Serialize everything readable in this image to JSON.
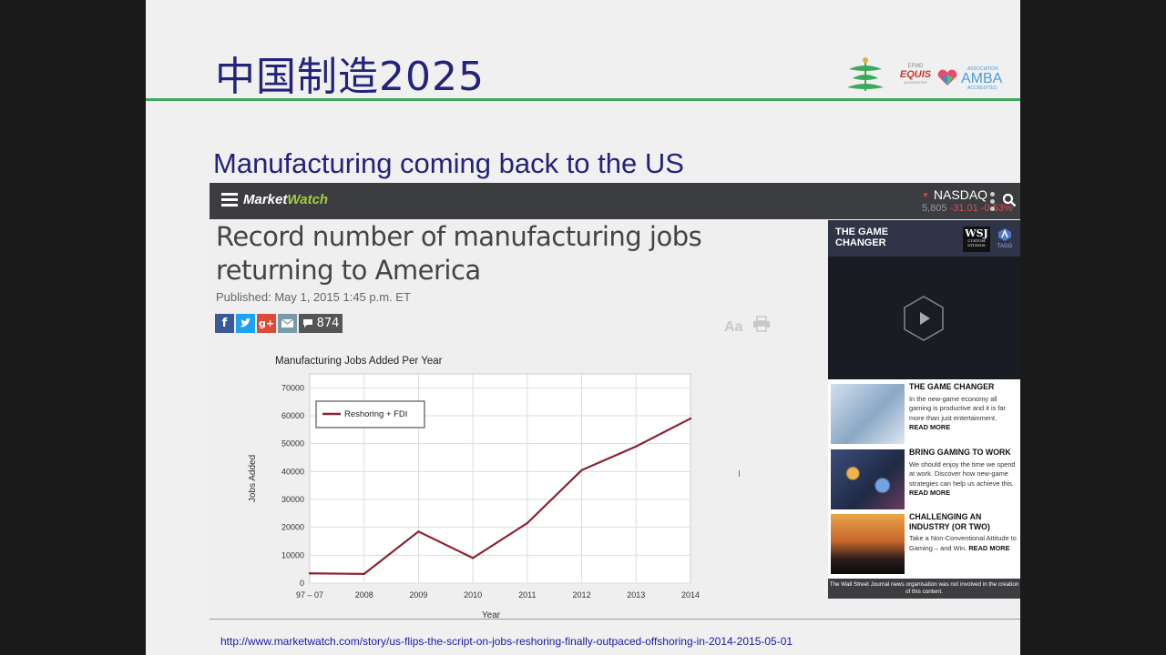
{
  "slide": {
    "title": "中国制造2025",
    "subtitle": "Manufacturing coming back to the US",
    "logos": {
      "equis_top": "EFMD",
      "equis": "EQUIS",
      "equis_sub": "ACCREDITED",
      "amba_top": "ASSOCIATION",
      "amba": "AMBA",
      "amba_sub": "ACCREDITED"
    },
    "source_url": "http://www.marketwatch.com/story/us-flips-the-script-on-jobs-reshoring-finally-outpaced-offshoring-in-2014-2015-05-01"
  },
  "marketwatch": {
    "logo_part1": "Market",
    "logo_part2": "Watch",
    "ticker": {
      "name": "NASDAQ",
      "price": "5,805",
      "change": "-31.01",
      "percent": "-0.53%"
    },
    "headline": "Record number of manufacturing jobs returning to America",
    "published": "Published: May 1, 2015 1:45 p.m. ET",
    "share": {
      "fb": "f",
      "gplus": "g+",
      "comments": "874"
    },
    "text_size_label": "Aa"
  },
  "chart_data": {
    "type": "line",
    "title": "Manufacturing Jobs Added Per Year",
    "xlabel": "Year",
    "ylabel": "Jobs Added",
    "categories": [
      "97 – 07",
      "2008",
      "2009",
      "2010",
      "2011",
      "2012",
      "2013",
      "2014"
    ],
    "series": [
      {
        "name": "Reshoring + FDI",
        "values": [
          3500,
          3300,
          18500,
          9000,
          21500,
          40500,
          49000,
          59000
        ]
      }
    ],
    "ylim": [
      0,
      75000
    ],
    "yticks": [
      0,
      10000,
      20000,
      30000,
      40000,
      50000,
      60000,
      70000
    ],
    "grid": true,
    "legend": "top-left",
    "color": "#8b2335"
  },
  "sidebar": {
    "header_title": "THE GAME CHANGER",
    "wsj_logo": "WSJ",
    "wsj_sub": "CUSTOM STUDIOS",
    "tag_logo": "TAGG",
    "articles": [
      {
        "title": "THE GAME CHANGER",
        "body": "In the new-game economy all gaming is productive and it is far more than just entertainment.",
        "cta": "READ MORE"
      },
      {
        "title": "BRING GAMING TO WORK",
        "body": "We should enjoy the time we spend at work. Discover how new-game strategies can help us achieve this.",
        "cta": "READ MORE"
      },
      {
        "title": "CHALLENGING AN INDUSTRY (OR TWO)",
        "body": "Take a Non-Conventional Attitude to Gaming – and Win.",
        "cta": "READ MORE"
      }
    ],
    "disclaimer": "The Wall Street Journal news organisation was not involved in the creation of this content."
  }
}
